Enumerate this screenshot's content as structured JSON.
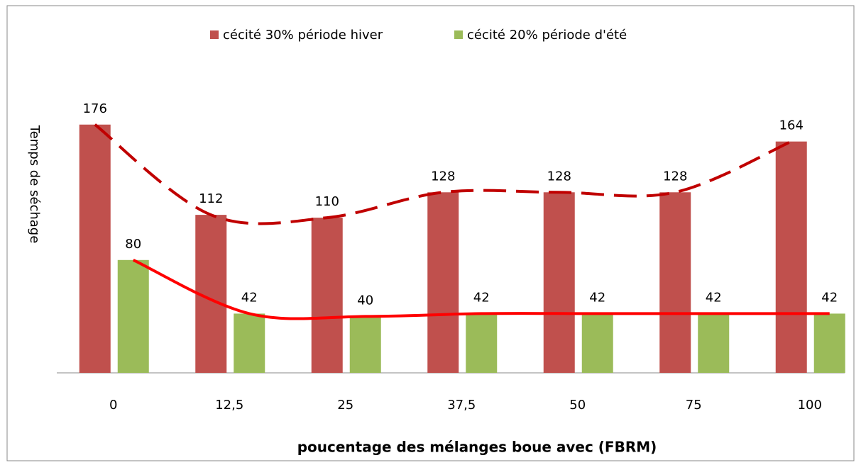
{
  "chart_data": {
    "type": "bar",
    "y_label": "Temps de séchage",
    "x_label": "poucentage des mélanges boue  avec  (FBRM)",
    "categories": [
      "0",
      "12,5",
      "25",
      "37,5",
      "50",
      "75",
      "100"
    ],
    "series": [
      {
        "name": "cécité 30% période hiver",
        "color": "#c0504d",
        "values": [
          176,
          112,
          110,
          128,
          128,
          128,
          164
        ]
      },
      {
        "name": "cécité 20%  période d'été",
        "color": "#9bbb59",
        "values": [
          80,
          42,
          40,
          42,
          42,
          42,
          42
        ]
      }
    ],
    "legend": "top"
  }
}
